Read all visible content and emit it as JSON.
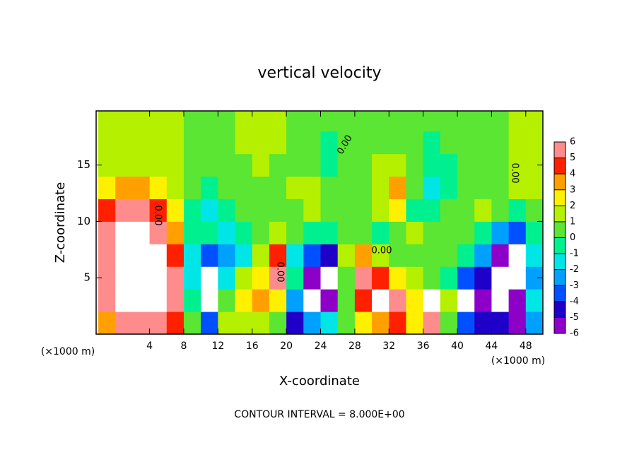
{
  "chart_data": {
    "type": "heatmap",
    "title": "vertical velocity",
    "x_label": "X-coordinate",
    "y_label": "Z-coordinate",
    "x_unit": "(×1000 m)",
    "x_unit_right": "(×1000 m)",
    "footer": "CONTOUR INTERVAL = 8.000E+00",
    "contour_labels": [
      "0.00",
      "0.00",
      "0.00",
      "0.00",
      "0.00"
    ],
    "xlim": [
      -2.25,
      50
    ],
    "ylim": [
      0,
      19.8
    ],
    "xticks": [
      4,
      8,
      12,
      16,
      20,
      24,
      28,
      32,
      36,
      40,
      44,
      48
    ],
    "yticks": [
      5,
      10,
      15
    ],
    "x": [
      -1,
      1,
      3,
      5,
      7,
      9,
      11,
      13,
      15,
      17,
      19,
      21,
      23,
      25,
      27,
      29,
      31,
      33,
      35,
      37,
      39,
      41,
      43,
      45,
      47,
      49
    ],
    "z": [
      1,
      3,
      5,
      7,
      9,
      11,
      13,
      15,
      17,
      19
    ],
    "values": [
      [
        3,
        5,
        6,
        6,
        4,
        0,
        -4,
        1,
        1,
        1,
        0,
        -5,
        -3,
        -2,
        0,
        2,
        3,
        4,
        2,
        6,
        0,
        -4,
        -5,
        -5,
        -6,
        -3
      ],
      [
        5,
        8,
        8,
        8,
        5,
        -1,
        -8,
        0,
        2,
        3,
        2,
        -3,
        -8,
        -6,
        0,
        4,
        8,
        6,
        2,
        8,
        1,
        -8,
        -6,
        -8,
        -6,
        -2
      ],
      [
        6,
        8,
        8,
        8,
        5,
        -2,
        -7,
        -2,
        1,
        2,
        5,
        -1,
        -6,
        -8,
        0,
        5,
        4,
        2,
        1,
        0,
        -1,
        -4,
        -5,
        -8,
        -8,
        -3
      ],
      [
        6,
        8,
        8,
        7,
        4,
        -2,
        -4,
        -3,
        -2,
        1,
        4,
        -2,
        -4,
        -5,
        1,
        3,
        1,
        0,
        0,
        0,
        0,
        -1,
        -3,
        -6,
        -7,
        -2
      ],
      [
        5,
        8,
        7,
        6,
        3,
        -1,
        -1,
        -2,
        -1,
        0,
        1,
        0,
        -1,
        -1,
        0,
        0,
        -1,
        0,
        1,
        0,
        0,
        0,
        -1,
        -3,
        -4,
        -1
      ],
      [
        4,
        5,
        5,
        4,
        2,
        -1,
        -2,
        -1,
        0,
        0,
        0,
        0,
        1,
        0,
        0,
        0,
        1,
        2,
        -1,
        -1,
        0,
        0,
        1,
        0,
        -1,
        0
      ],
      [
        2,
        3,
        3,
        2,
        1,
        0,
        -1,
        0,
        0,
        0,
        0,
        1,
        1,
        0,
        0,
        0,
        1,
        3,
        0,
        -2,
        -1,
        0,
        0,
        0,
        1,
        1
      ],
      [
        1,
        1,
        1,
        1,
        1,
        0,
        0,
        0,
        0,
        1,
        0,
        0,
        0,
        -1,
        0,
        0,
        1,
        1,
        0,
        -1,
        -1,
        0,
        0,
        0,
        1,
        1
      ],
      [
        1,
        1,
        1,
        1,
        1,
        0,
        0,
        0,
        1,
        1,
        1,
        0,
        0,
        -1,
        0,
        0,
        0,
        0,
        0,
        -1,
        0,
        0,
        0,
        0,
        1,
        1
      ],
      [
        1,
        1,
        1,
        1,
        1,
        0,
        0,
        0,
        1,
        1,
        1,
        0,
        0,
        0,
        0,
        0,
        0,
        0,
        0,
        0,
        0,
        0,
        0,
        0,
        1,
        1
      ]
    ],
    "levels": [
      -6,
      -5,
      -4,
      -3,
      -2,
      -1,
      0,
      1,
      2,
      3,
      4,
      5,
      6
    ],
    "colors": [
      "#8c00c8",
      "#1e00c8",
      "#0050ff",
      "#00a0ff",
      "#00e6e6",
      "#00f090",
      "#5ae632",
      "#b4f000",
      "#fff000",
      "#ffa000",
      "#ff2000",
      "#ff8c8c"
    ],
    "out_of_range_color": "#ffffff"
  }
}
